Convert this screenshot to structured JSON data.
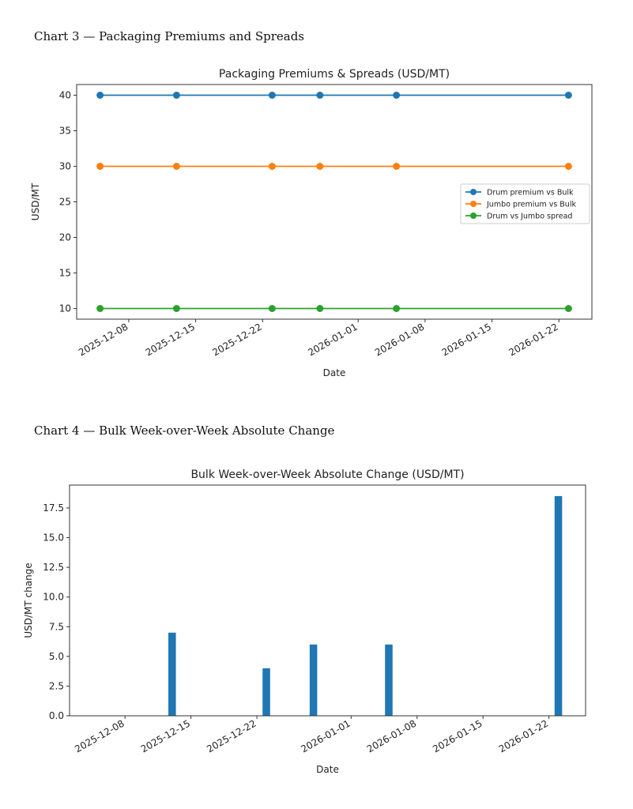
{
  "headings": {
    "chart3": "Chart 3 — Packaging Premiums and Spreads",
    "chart4": "Chart 4 — Bulk Week-over-Week Absolute Change"
  },
  "chart_data": [
    {
      "type": "line",
      "title": "Packaging Premiums & Spreads (USD/MT)",
      "xlabel": "Date",
      "ylabel": "USD/MT",
      "x": [
        "2025-12-05",
        "2025-12-13",
        "2025-12-23",
        "2025-12-28",
        "2026-01-05",
        "2026-01-23"
      ],
      "series": [
        {
          "name": "Drum premium vs Bulk",
          "color": "#1f77b4",
          "values": [
            40,
            40,
            40,
            40,
            40,
            40
          ]
        },
        {
          "name": "Jumbo premium vs Bulk",
          "color": "#ff7f0e",
          "values": [
            30,
            30,
            30,
            30,
            30,
            30
          ]
        },
        {
          "name": "Drum vs Jumbo spread",
          "color": "#2ca02c",
          "values": [
            10,
            10,
            10,
            10,
            10,
            10
          ]
        }
      ],
      "ylim": [
        8.5,
        41.5
      ],
      "yticks": [
        "10",
        "15",
        "20",
        "25",
        "30",
        "35",
        "40"
      ],
      "xticks": [
        "2025-12-08",
        "2025-12-15",
        "2025-12-22",
        "2026-01-01",
        "2026-01-08",
        "2026-01-15",
        "2026-01-22"
      ],
      "legend": "center-right",
      "grid": false
    },
    {
      "type": "bar",
      "title": "Bulk Week-over-Week Absolute Change (USD/MT)",
      "xlabel": "Date",
      "ylabel": "USD/MT change",
      "x": [
        "2025-12-05",
        "2025-12-13",
        "2025-12-23",
        "2025-12-28",
        "2026-01-05",
        "2026-01-23"
      ],
      "values": [
        0,
        7,
        4,
        6,
        6,
        18.5
      ],
      "color": "#1f77b4",
      "ylim": [
        0,
        19.425
      ],
      "yticks": [
        "0.0",
        "2.5",
        "5.0",
        "7.5",
        "10.0",
        "12.5",
        "15.0",
        "17.5"
      ],
      "xticks": [
        "2025-12-08",
        "2025-12-15",
        "2025-12-22",
        "2026-01-01",
        "2026-01-08",
        "2026-01-15",
        "2026-01-22"
      ],
      "grid": false
    }
  ]
}
